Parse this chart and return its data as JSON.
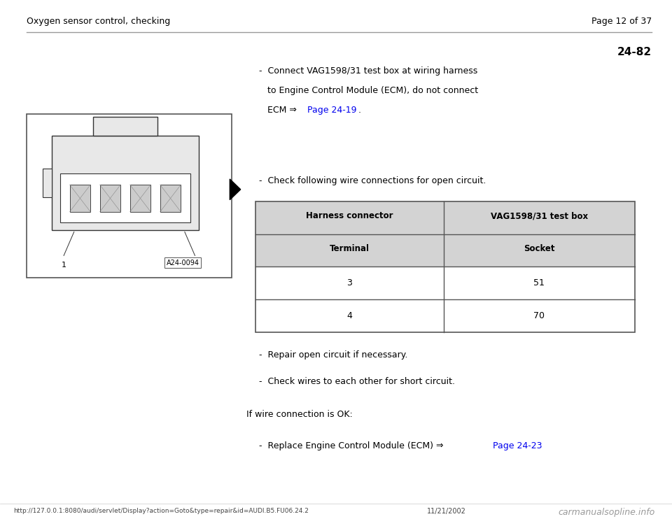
{
  "page_title_left": "Oxygen sensor control, checking",
  "page_title_right": "Page 12 of 37",
  "section_number": "24-82",
  "bullet1_line1": "-  Connect VAG1598/31 test box at wiring harness",
  "bullet1_line2": "   to Engine Control Module (ECM), do not connect",
  "bullet1_line3_pre": "   ECM ⇒ ",
  "bullet1_link": "Page 24-19",
  "bullet1_line3_post": " .",
  "check_intro": "-  Check following wire connections for open circuit.",
  "table_header_row1_col1": "Harness connector",
  "table_header_row1_col2": "VAG1598/31 test box",
  "table_header_row2_col1": "Terminal",
  "table_header_row2_col2": "Socket",
  "table_data": [
    [
      "3",
      "51"
    ],
    [
      "4",
      "70"
    ]
  ],
  "bullet2": "-  Repair open circuit if necessary.",
  "bullet3": "-  Check wires to each other for short circuit.",
  "if_wire_text": "If wire connection is OK:",
  "bullet4_pre": "-  Replace Engine Control Module (ECM) ⇒ ",
  "bullet4_link": "Page 24-23",
  "footer_url": "http://127.0.0.1:8080/audi/servlet/Display?action=Goto&type=repair&id=AUDI.B5.FU06.24.2",
  "footer_date": "11/21/2002",
  "footer_logo": "carmanualsopline.info",
  "link_color": "#0000EE",
  "table_header_bg": "#D3D3D3",
  "table_border_color": "#555555",
  "text_color": "#000000",
  "bg_color": "#FFFFFF",
  "header_line_color": "#999999",
  "image_label": "A24-0094"
}
